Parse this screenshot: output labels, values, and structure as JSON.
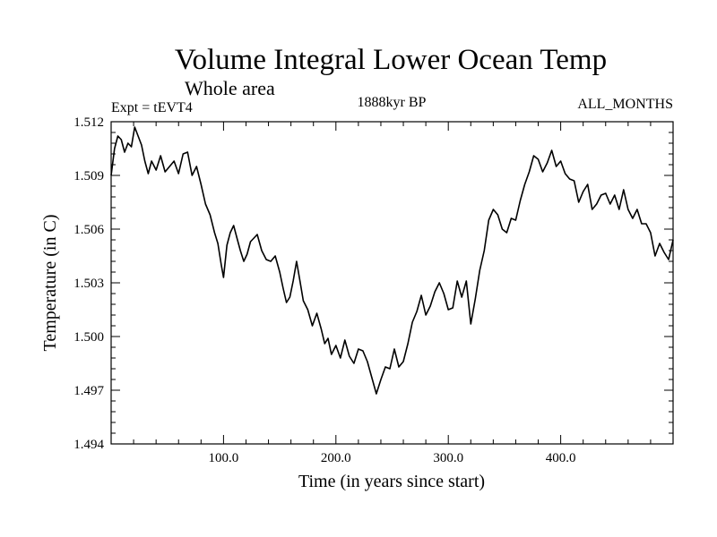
{
  "chart_data": {
    "type": "line",
    "title": "Volume Integral Lower Ocean Temp",
    "subtitle_left": "Whole area",
    "expt_label": "Expt = tEVT4",
    "center_label": "1888kyr BP",
    "right_label": "ALL_MONTHS",
    "xlabel": "Time (in years since start)",
    "ylabel": "Temperature (in C)",
    "xlim": [
      0,
      500
    ],
    "ylim": [
      1.494,
      1.512
    ],
    "x_ticks": [
      {
        "value": 100,
        "label": "100.0"
      },
      {
        "value": 200,
        "label": "200.0"
      },
      {
        "value": 300,
        "label": "300.0"
      },
      {
        "value": 400,
        "label": "400.0"
      }
    ],
    "y_ticks": [
      {
        "value": 1.494,
        "label": "1.494"
      },
      {
        "value": 1.497,
        "label": "1.497"
      },
      {
        "value": 1.5,
        "label": "1.500"
      },
      {
        "value": 1.503,
        "label": "1.503"
      },
      {
        "value": 1.506,
        "label": "1.506"
      },
      {
        "value": 1.509,
        "label": "1.509"
      },
      {
        "value": 1.512,
        "label": "1.512"
      }
    ],
    "series": [
      {
        "name": "Volume Integral Lower Ocean Temp",
        "x": [
          0,
          3,
          6,
          9,
          12,
          15,
          18,
          21,
          24,
          27,
          30,
          33,
          36,
          40,
          44,
          48,
          52,
          56,
          60,
          64,
          68,
          72,
          76,
          80,
          84,
          88,
          92,
          95,
          98,
          100,
          103,
          106,
          109,
          112,
          115,
          118,
          121,
          124,
          127,
          130,
          134,
          138,
          142,
          146,
          150,
          153,
          156,
          159,
          162,
          165,
          168,
          171,
          175,
          179,
          183,
          187,
          190,
          193,
          196,
          200,
          204,
          208,
          212,
          216,
          220,
          224,
          228,
          232,
          236,
          240,
          244,
          248,
          252,
          256,
          260,
          264,
          268,
          272,
          276,
          280,
          284,
          288,
          292,
          296,
          300,
          304,
          308,
          312,
          316,
          320,
          324,
          328,
          332,
          336,
          340,
          344,
          348,
          352,
          356,
          360,
          364,
          368,
          372,
          376,
          380,
          384,
          388,
          392,
          396,
          400,
          404,
          408,
          412,
          416,
          420,
          424,
          428,
          432,
          436,
          440,
          444,
          448,
          452,
          456,
          460,
          464,
          468,
          472,
          476,
          480,
          484,
          488,
          492,
          496,
          500
        ],
        "y": [
          1.509,
          1.5105,
          1.5112,
          1.511,
          1.5103,
          1.5108,
          1.5106,
          1.5117,
          1.5112,
          1.5107,
          1.5098,
          1.5091,
          1.5098,
          1.5093,
          1.5101,
          1.5092,
          1.5095,
          1.5098,
          1.5091,
          1.5102,
          1.5103,
          1.509,
          1.5095,
          1.5085,
          1.5074,
          1.5068,
          1.5058,
          1.5052,
          1.504,
          1.5033,
          1.5051,
          1.5058,
          1.5062,
          1.5055,
          1.5048,
          1.5042,
          1.5046,
          1.5053,
          1.5055,
          1.5057,
          1.5048,
          1.5043,
          1.5042,
          1.5045,
          1.5036,
          1.5027,
          1.5019,
          1.5022,
          1.5031,
          1.5042,
          1.5031,
          1.502,
          1.5015,
          1.5006,
          1.5013,
          1.5004,
          1.4996,
          1.4999,
          1.499,
          1.4995,
          1.4988,
          1.4998,
          1.4989,
          1.4985,
          1.4993,
          1.4992,
          1.4986,
          1.4977,
          1.4968,
          1.4976,
          1.4983,
          1.4982,
          1.4993,
          1.4983,
          1.4986,
          1.4996,
          1.5008,
          1.5014,
          1.5023,
          1.5012,
          1.5017,
          1.5025,
          1.503,
          1.5024,
          1.5015,
          1.5016,
          1.5031,
          1.5022,
          1.5031,
          1.5007,
          1.5021,
          1.5037,
          1.5048,
          1.5065,
          1.5071,
          1.5068,
          1.506,
          1.5058,
          1.5066,
          1.5065,
          1.5076,
          1.5085,
          1.5092,
          1.5101,
          1.5099,
          1.5092,
          1.5097,
          1.5104,
          1.5095,
          1.5098,
          1.5091,
          1.5088,
          1.5087,
          1.5075,
          1.5081,
          1.5085,
          1.5071,
          1.5074,
          1.5079,
          1.508,
          1.5074,
          1.5079,
          1.5071,
          1.5082,
          1.5071,
          1.5066,
          1.5071,
          1.5063,
          1.5063,
          1.5058,
          1.5045,
          1.5052,
          1.5047,
          1.5043,
          1.5054
        ]
      }
    ]
  }
}
